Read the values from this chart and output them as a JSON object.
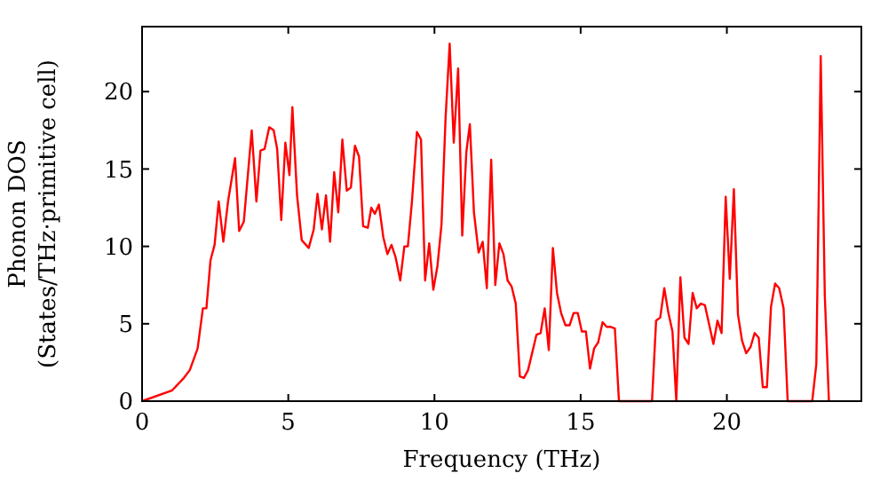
{
  "chart_data": {
    "type": "line",
    "xlabel": "Frequency (THz)",
    "ylabel": "Phonon DOS\n(States/THz·primitive cell)",
    "xlim": [
      0,
      24.6
    ],
    "ylim": [
      0,
      24.2
    ],
    "xticks": [
      0,
      5,
      10,
      15,
      20
    ],
    "yticks": [
      0,
      5,
      10,
      15,
      20
    ],
    "grid": false,
    "marker": "none",
    "line_style": "solid",
    "series": [
      {
        "color": "#ff0000",
        "x": [
          0,
          1.03,
          1.43,
          1.63,
          1.9,
          2.08,
          2.2,
          2.34,
          2.48,
          2.62,
          2.78,
          2.94,
          3.18,
          3.32,
          3.48,
          3.75,
          3.91,
          4.05,
          4.19,
          4.35,
          4.5,
          4.62,
          4.76,
          4.9,
          5.04,
          5.14,
          5.3,
          5.46,
          5.7,
          5.87,
          6.0,
          6.15,
          6.29,
          6.43,
          6.57,
          6.71,
          6.85,
          7.0,
          7.14,
          7.28,
          7.42,
          7.56,
          7.72,
          7.84,
          7.96,
          8.1,
          8.25,
          8.39,
          8.53,
          8.67,
          8.83,
          8.97,
          9.09,
          9.23,
          9.4,
          9.54,
          9.68,
          9.82,
          9.96,
          10.1,
          10.24,
          10.38,
          10.52,
          10.66,
          10.81,
          10.95,
          11.09,
          11.21,
          11.35,
          11.51,
          11.65,
          11.79,
          11.94,
          12.08,
          12.22,
          12.36,
          12.5,
          12.64,
          12.78,
          12.92,
          13.06,
          13.2,
          13.49,
          13.63,
          13.77,
          13.91,
          14.05,
          14.19,
          14.33,
          14.48,
          14.62,
          14.76,
          14.9,
          15.04,
          15.18,
          15.32,
          15.46,
          15.6,
          15.75,
          15.89,
          16.03,
          16.17,
          16.31,
          17.44,
          17.58,
          17.72,
          17.86,
          18.0,
          18.14,
          18.27,
          18.41,
          18.55,
          18.69,
          18.83,
          18.97,
          19.11,
          19.25,
          19.4,
          19.54,
          19.68,
          19.82,
          19.96,
          20.1,
          20.24,
          20.38,
          20.52,
          20.66,
          20.81,
          20.95,
          21.09,
          21.23,
          21.37,
          21.51,
          21.65,
          21.79,
          21.94,
          22.08,
          22.92,
          23.06,
          23.21,
          23.35,
          23.49
        ],
        "values": [
          0,
          0.7,
          1.5,
          2.0,
          3.4,
          6.0,
          6.0,
          9.1,
          10.1,
          12.9,
          10.3,
          12.9,
          15.7,
          11.0,
          11.6,
          17.5,
          12.9,
          16.2,
          16.3,
          17.7,
          17.5,
          16.3,
          11.7,
          16.7,
          14.6,
          19.0,
          13.3,
          10.4,
          9.9,
          11.1,
          13.4,
          11.1,
          13.3,
          10.3,
          14.8,
          12.2,
          16.9,
          13.6,
          13.8,
          16.5,
          15.8,
          11.3,
          11.2,
          12.5,
          12.1,
          12.7,
          10.6,
          9.5,
          10.1,
          9.3,
          7.8,
          10.0,
          10.0,
          12.9,
          17.4,
          16.9,
          7.8,
          10.2,
          7.2,
          8.7,
          11.4,
          18.3,
          23.1,
          16.7,
          21.5,
          10.7,
          16.1,
          17.9,
          12.2,
          9.6,
          10.3,
          7.3,
          15.6,
          7.5,
          10.2,
          9.5,
          7.8,
          7.4,
          6.3,
          1.6,
          1.5,
          2.0,
          4.3,
          4.4,
          6.0,
          3.3,
          9.9,
          7.0,
          5.7,
          4.9,
          4.9,
          5.7,
          5.7,
          4.5,
          4.5,
          2.1,
          3.4,
          3.8,
          5.1,
          4.8,
          4.8,
          4.7,
          0,
          0,
          5.2,
          5.4,
          7.3,
          5.7,
          4.5,
          0,
          8.0,
          4.1,
          3.7,
          7.0,
          6.0,
          6.3,
          6.2,
          4.9,
          3.7,
          5.2,
          4.4,
          13.2,
          7.9,
          13.7,
          5.6,
          3.9,
          3.1,
          3.5,
          4.4,
          4.1,
          0.9,
          0.9,
          6.1,
          7.6,
          7.3,
          6.0,
          0,
          0,
          2.4,
          22.3,
          6.8,
          0
        ]
      }
    ]
  }
}
